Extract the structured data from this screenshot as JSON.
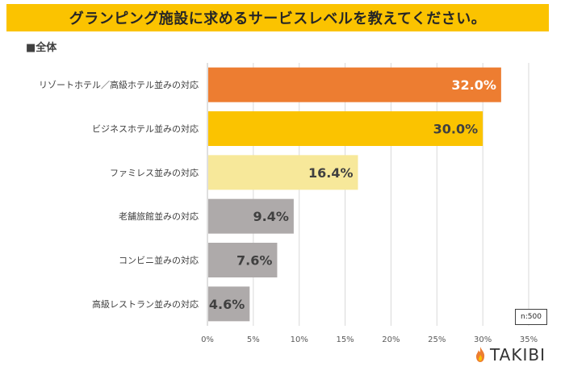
{
  "header": {
    "title": "グランピング施設に求めるサービスレベルを教えてください。",
    "subtitle": "■全体"
  },
  "chart_data": {
    "type": "bar",
    "orientation": "horizontal",
    "title": "グランピング施設に求めるサービスレベルを教えてください。",
    "subtitle": "■全体",
    "categories": [
      "リゾートホテル／高級ホテル並みの対応",
      "ビジネスホテル並みの対応",
      "ファミレス並みの対応",
      "老舗旅館並みの対応",
      "コンビニ並みの対応",
      "高級レストラン並みの対応"
    ],
    "values": [
      32.0,
      30.0,
      16.4,
      9.4,
      7.6,
      4.6
    ],
    "value_labels": [
      "32.0%",
      "30.0%",
      "16.4%",
      "9.4%",
      "7.6%",
      "4.6%"
    ],
    "bar_colors": [
      "#ed7d31",
      "#fbc300",
      "#f7e89a",
      "#aeaaaa",
      "#aeaaaa",
      "#aeaaaa"
    ],
    "label_colors": [
      "#ffffff",
      "#404040",
      "#404040",
      "#404040",
      "#404040",
      "#404040"
    ],
    "xlim": [
      0,
      35
    ],
    "xticks": [
      0,
      5,
      10,
      15,
      20,
      25,
      30,
      35
    ],
    "xtick_labels": [
      "0%",
      "5%",
      "10%",
      "15%",
      "20%",
      "25%",
      "30%",
      "35%"
    ],
    "grid": true,
    "xlabel": "",
    "ylabel": ""
  },
  "sample_size": "n:500",
  "brand": {
    "logo_text": "TAKIBI",
    "flame_color": "#ed7d31"
  }
}
